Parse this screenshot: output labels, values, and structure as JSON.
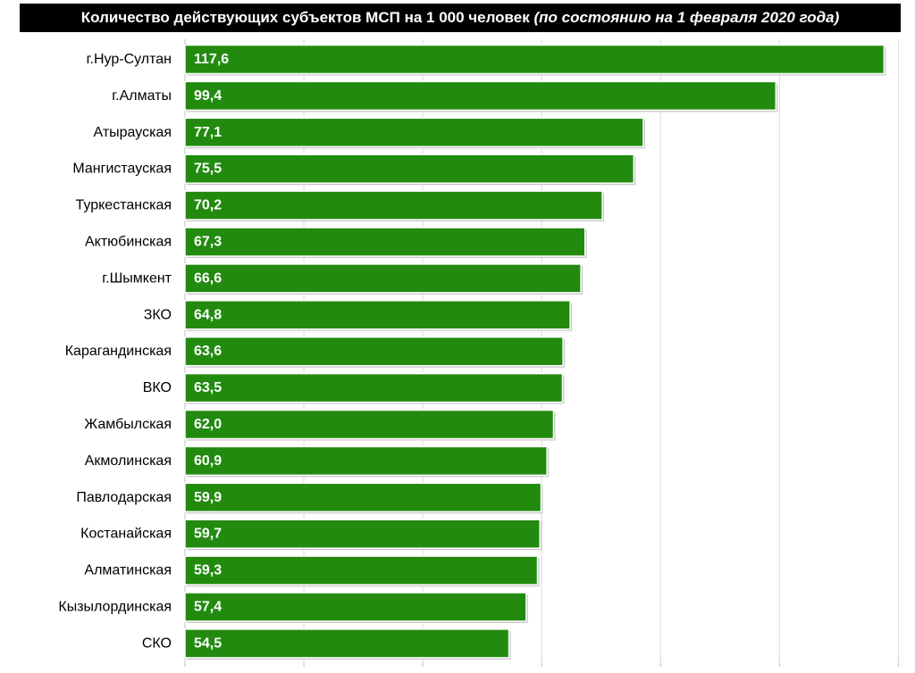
{
  "title": {
    "main": "Количество действующих субъектов МСП на 1 000 человек",
    "sub": "(по состоянию на 1 февраля 2020 года)"
  },
  "colors": {
    "bar": "#228b0f",
    "bar_edge": "#1a6e0b",
    "title_bg": "#000000",
    "grid": "#d9d9d9"
  },
  "chart_data": {
    "type": "bar",
    "orientation": "horizontal",
    "categories": [
      "г.Нур-Султан",
      "г.Алматы",
      "Атырауская",
      "Мангистауская",
      "Туркестанская",
      "Актюбинская",
      "г.Шымкент",
      "ЗКО",
      "Карагандинская",
      "ВКО",
      "Жамбылская",
      "Акмолинская",
      "Павлодарская",
      "Костанайская",
      "Алматинская",
      "Кызылординская",
      "СКО"
    ],
    "values": [
      117.6,
      99.4,
      77.1,
      75.5,
      70.2,
      67.3,
      66.6,
      64.8,
      63.6,
      63.5,
      62.0,
      60.9,
      59.9,
      59.7,
      59.3,
      57.4,
      54.5
    ],
    "value_labels": [
      "117,6",
      "99,4",
      "77,1",
      "75,5",
      "70,2",
      "67,3",
      "66,6",
      "64,8",
      "63,6",
      "63,5",
      "62,0",
      "60,9",
      "59,9",
      "59,7",
      "59,3",
      "57,4",
      "54,5"
    ],
    "xlim": [
      0,
      120
    ],
    "grid": true,
    "legend": "none"
  }
}
